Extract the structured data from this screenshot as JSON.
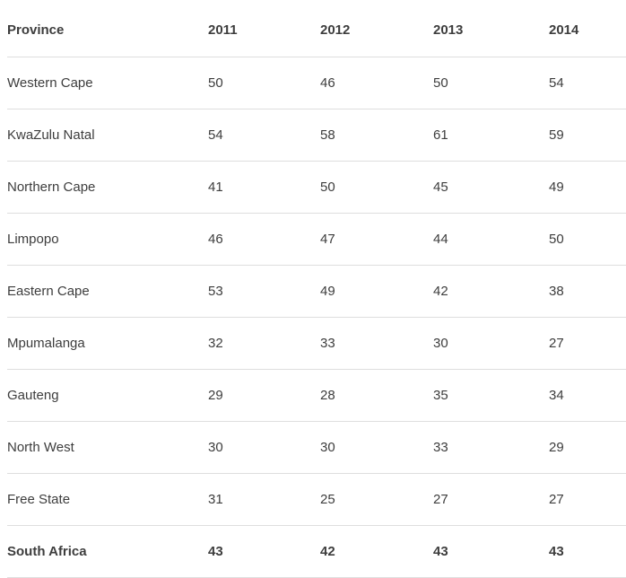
{
  "chart_data": {
    "type": "table",
    "columns": [
      "Province",
      "2011",
      "2012",
      "2013",
      "2014"
    ],
    "rows": [
      {
        "label": "Western Cape",
        "values": [
          50,
          46,
          50,
          54
        ]
      },
      {
        "label": "KwaZulu Natal",
        "values": [
          54,
          58,
          61,
          59
        ]
      },
      {
        "label": "Northern Cape",
        "values": [
          41,
          50,
          45,
          49
        ]
      },
      {
        "label": "Limpopo",
        "values": [
          46,
          47,
          44,
          50
        ]
      },
      {
        "label": "Eastern Cape",
        "values": [
          53,
          49,
          42,
          38
        ]
      },
      {
        "label": "Mpumalanga",
        "values": [
          32,
          33,
          30,
          27
        ]
      },
      {
        "label": "Gauteng",
        "values": [
          29,
          28,
          35,
          34
        ]
      },
      {
        "label": "North West",
        "values": [
          30,
          30,
          33,
          29
        ]
      },
      {
        "label": "Free State",
        "values": [
          31,
          25,
          27,
          27
        ]
      }
    ],
    "total_row": {
      "label": "South Africa",
      "values": [
        43,
        42,
        43,
        43
      ]
    },
    "layout": {
      "grid": "horizontal-row-separators",
      "header_bold": true,
      "total_row_bold": true
    }
  },
  "colors": {
    "text": "#3d3d3d",
    "border": "#dedede",
    "background": "#ffffff"
  }
}
